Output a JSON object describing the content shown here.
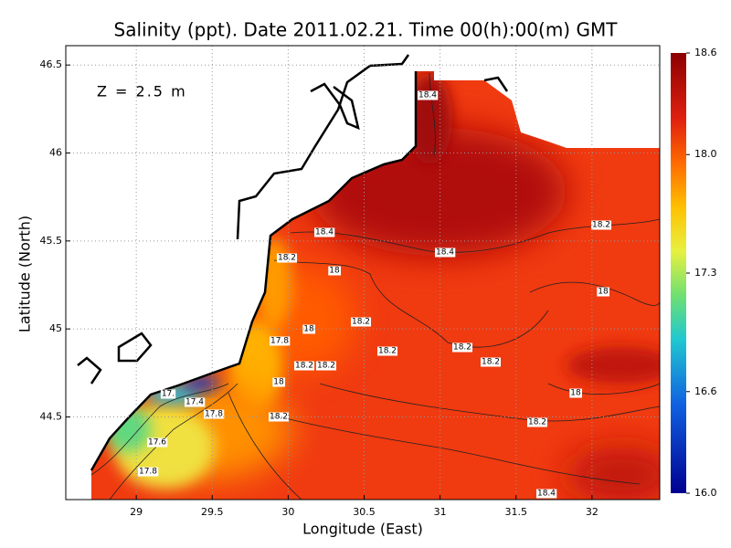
{
  "chart_data": {
    "type": "contour-map",
    "title": "Salinity (ppt). Date 2011.02.21. Time 00(h):00(m) GMT",
    "annotation": "Z = 2.5 m",
    "x_label": "Longitude (East)",
    "y_label": "Latitude (North)",
    "xlim": [
      28.536,
      32.446
    ],
    "ylim": [
      44.03,
      46.61
    ],
    "xticks": [
      29,
      29.5,
      30,
      30.5,
      31,
      31.5,
      32
    ],
    "yticks": [
      44.5,
      45,
      45.5,
      46,
      46.5
    ],
    "grid": true,
    "colorbar": {
      "lim": [
        16,
        18.6
      ],
      "ticks": [
        {
          "value": 16,
          "label": "16.0"
        },
        16.6,
        17.3,
        {
          "value": 18,
          "label": "18.0"
        },
        18.6
      ]
    },
    "contour_labels": [
      "18.4",
      "18.4",
      "18.4",
      "18.2",
      "18",
      "18.2",
      "18",
      "18",
      "18.2",
      "17.8",
      "18",
      "18.2",
      "18.2",
      "18.2",
      "18.2",
      "18.2",
      "18",
      "18.2",
      "18.2",
      "17.8",
      "17.",
      "17.4",
      "17.6",
      "17.8",
      "18.4"
    ]
  }
}
